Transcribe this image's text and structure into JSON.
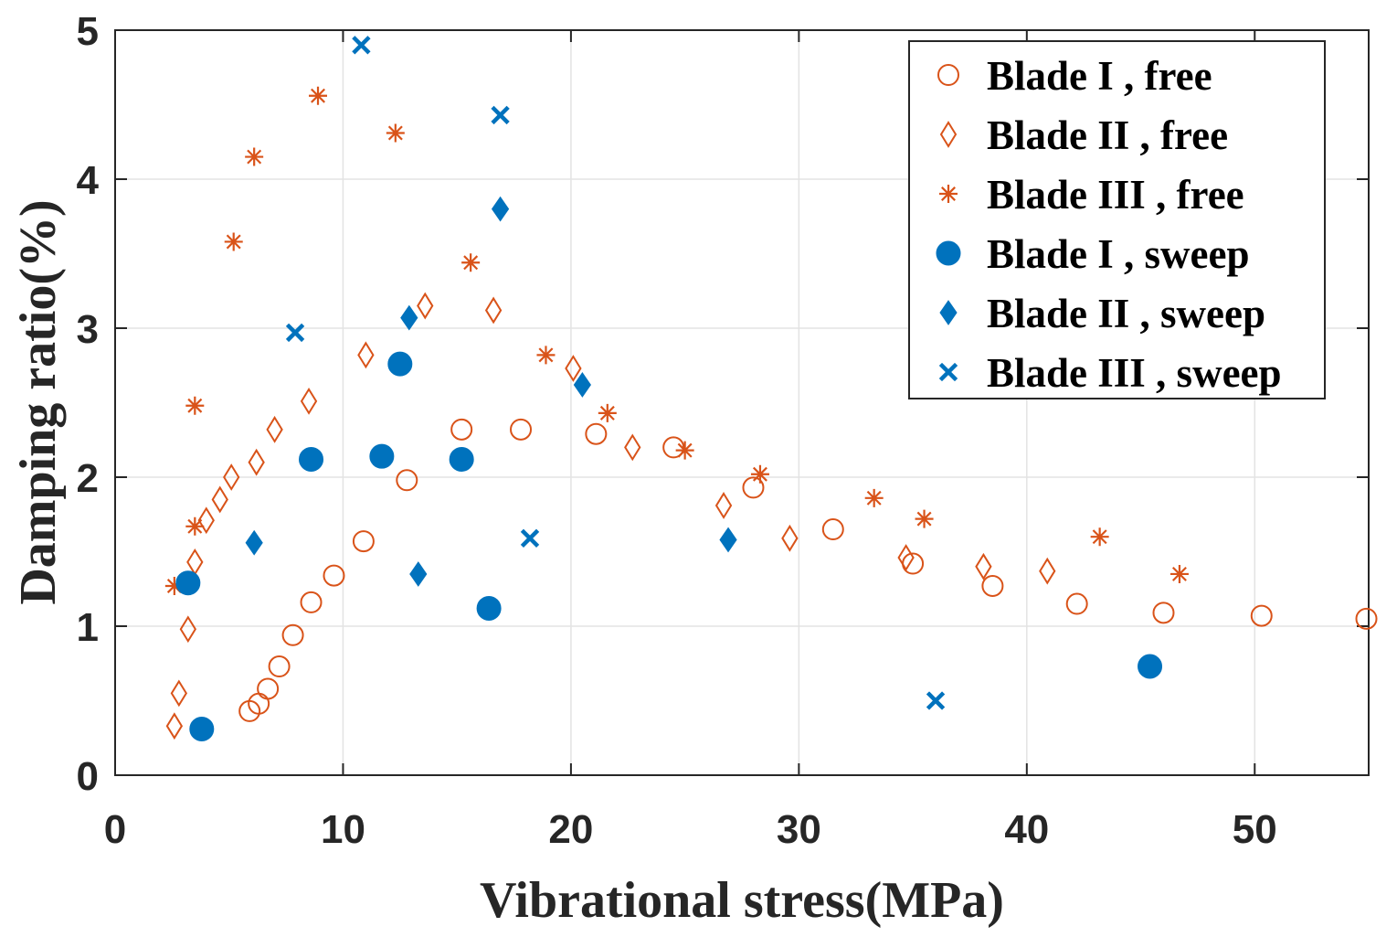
{
  "chart_data": {
    "type": "scatter",
    "title": "",
    "xlabel": "Vibrational stress(MPa)",
    "ylabel": "Damping ratio(%)",
    "xlim": [
      0,
      55
    ],
    "ylim": [
      0,
      5
    ],
    "xticks": [
      "0",
      "10",
      "20",
      "30",
      "40",
      "50"
    ],
    "yticks": [
      "0",
      "1",
      "2",
      "3",
      "4",
      "5"
    ],
    "grid": true,
    "legend_position": "top-right",
    "colors": {
      "free": "#D95319",
      "sweep": "#0072BD"
    },
    "series": [
      {
        "name": "Blade I , free",
        "marker": "circle-open",
        "group": "free",
        "points": [
          [
            5.9,
            0.43
          ],
          [
            6.3,
            0.48
          ],
          [
            6.7,
            0.58
          ],
          [
            7.2,
            0.73
          ],
          [
            7.8,
            0.94
          ],
          [
            8.6,
            1.16
          ],
          [
            9.6,
            1.34
          ],
          [
            10.9,
            1.57
          ],
          [
            12.8,
            1.98
          ],
          [
            15.2,
            2.32
          ],
          [
            17.8,
            2.32
          ],
          [
            21.1,
            2.29
          ],
          [
            24.5,
            2.2
          ],
          [
            28.0,
            1.93
          ],
          [
            31.5,
            1.65
          ],
          [
            35.0,
            1.42
          ],
          [
            38.5,
            1.27
          ],
          [
            42.2,
            1.15
          ],
          [
            46.0,
            1.09
          ],
          [
            50.3,
            1.07
          ],
          [
            54.9,
            1.05
          ]
        ]
      },
      {
        "name": "Blade II , free",
        "marker": "diamond-open",
        "group": "free",
        "points": [
          [
            2.6,
            0.33
          ],
          [
            2.8,
            0.55
          ],
          [
            3.2,
            0.98
          ],
          [
            3.5,
            1.43
          ],
          [
            4.0,
            1.71
          ],
          [
            4.6,
            1.85
          ],
          [
            5.1,
            2.0
          ],
          [
            6.2,
            2.1
          ],
          [
            7.0,
            2.32
          ],
          [
            8.5,
            2.51
          ],
          [
            11.0,
            2.82
          ],
          [
            13.6,
            3.15
          ],
          [
            16.6,
            3.12
          ],
          [
            20.1,
            2.73
          ],
          [
            22.7,
            2.2
          ],
          [
            26.7,
            1.81
          ],
          [
            29.6,
            1.59
          ],
          [
            34.7,
            1.46
          ],
          [
            38.1,
            1.4
          ],
          [
            40.9,
            1.37
          ]
        ]
      },
      {
        "name": "Blade III , free",
        "marker": "asterisk",
        "group": "free",
        "points": [
          [
            2.6,
            1.27
          ],
          [
            3.5,
            1.67
          ],
          [
            3.5,
            2.48
          ],
          [
            5.2,
            3.58
          ],
          [
            6.1,
            4.15
          ],
          [
            8.9,
            4.56
          ],
          [
            12.3,
            4.31
          ],
          [
            15.6,
            3.44
          ],
          [
            18.9,
            2.82
          ],
          [
            21.6,
            2.43
          ],
          [
            25.0,
            2.18
          ],
          [
            28.3,
            2.02
          ],
          [
            33.3,
            1.86
          ],
          [
            35.5,
            1.72
          ],
          [
            43.2,
            1.6
          ],
          [
            46.7,
            1.35
          ]
        ]
      },
      {
        "name": "Blade I , sweep",
        "marker": "circle-filled",
        "group": "sweep",
        "points": [
          [
            3.2,
            1.29
          ],
          [
            3.8,
            0.31
          ],
          [
            8.6,
            2.12
          ],
          [
            11.7,
            2.14
          ],
          [
            12.5,
            2.76
          ],
          [
            15.2,
            2.12
          ],
          [
            16.4,
            1.12
          ],
          [
            45.4,
            0.73
          ]
        ]
      },
      {
        "name": "Blade II , sweep",
        "marker": "diamond-filled",
        "group": "sweep",
        "points": [
          [
            6.1,
            1.56
          ],
          [
            12.9,
            3.07
          ],
          [
            13.3,
            1.35
          ],
          [
            16.9,
            3.8
          ],
          [
            20.5,
            2.62
          ],
          [
            26.9,
            1.58
          ]
        ]
      },
      {
        "name": "Blade III , sweep",
        "marker": "x",
        "group": "sweep",
        "points": [
          [
            7.9,
            2.97
          ],
          [
            10.8,
            4.9
          ],
          [
            16.9,
            4.43
          ],
          [
            18.2,
            1.59
          ],
          [
            36.0,
            0.5
          ]
        ]
      }
    ]
  }
}
